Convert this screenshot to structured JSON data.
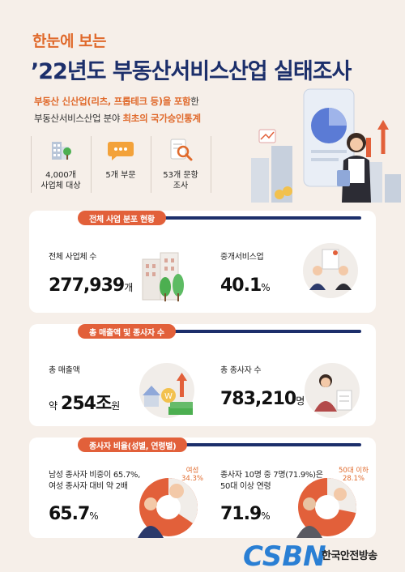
{
  "header": {
    "subtitle": "한눈에 보는",
    "title": "’22년도 부동산서비스산업 실태조사",
    "intro_line1_highlight": "부동산 신산업(리츠, 프롭테크 등)을 포함",
    "intro_line1_rest": "한",
    "intro_line2_text": "부동산서비스산업 분야 ",
    "intro_line2_highlight": "최초의 국가승인통계"
  },
  "features": [
    {
      "icon": "buildings-icon",
      "label_line1": "4,000개",
      "label_line2": "사업체 대상"
    },
    {
      "icon": "chat-bubble-icon",
      "label_line1": "5개 부문",
      "label_line2": ""
    },
    {
      "icon": "magnifier-document-icon",
      "label_line1": "53개 문항",
      "label_line2": "조사"
    }
  ],
  "section1": {
    "title": "전체 사업 분포 현황",
    "left_label": "전체 사업체 수",
    "left_value": "277,939",
    "left_unit": "개",
    "right_label": "중개서비스업",
    "right_value": "40.1",
    "right_unit": "%"
  },
  "section2": {
    "title": "총 매출액 및 종사자 수",
    "left_label": "총 매출액",
    "left_prefix": "약",
    "left_value": "254조",
    "left_unit": "원",
    "right_label": "총 종사자 수",
    "right_value": "783,210",
    "right_unit": "명"
  },
  "section3": {
    "title": "종사자 비율(성별, 연령별)",
    "left_text_line1": "남성 종사자 비중이 65.7%,",
    "left_text_line2": "여성 종사자 대비 약 2배",
    "left_value": "65.7",
    "left_unit": "%",
    "left_pie_label_line1": "여성",
    "left_pie_label_line2": "34.3%",
    "left_pie_fraction": 0.343,
    "right_text_line1": "종사자 10명 중 7명(71.9%)은",
    "right_text_line2": "50대 이상 연령",
    "right_value": "71.9",
    "right_unit": "%",
    "right_pie_label_line1": "50대 이하",
    "right_pie_label_line2": "28.1%",
    "right_pie_fraction": 0.281
  },
  "logo": {
    "mark": "CSBN",
    "name": "한국안전방송"
  },
  "colors": {
    "accent_orange": "#e2603a",
    "navy": "#1c2f6b",
    "background": "#f6efe9"
  }
}
